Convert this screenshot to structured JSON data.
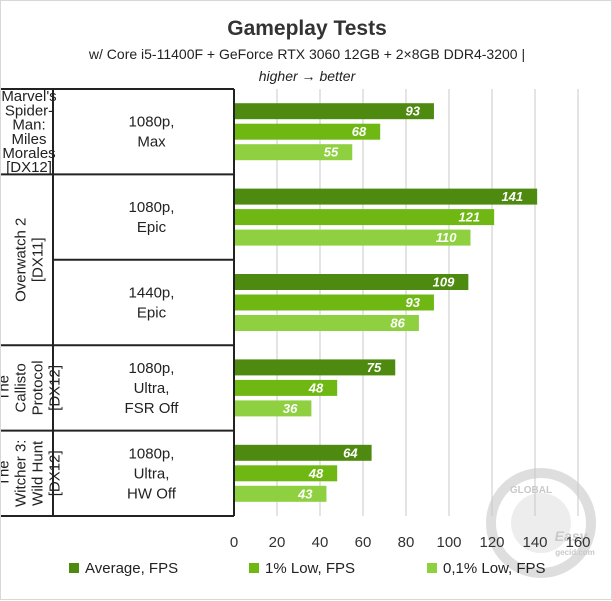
{
  "title": "Gameplay Tests",
  "subtitle_line1": "w/ Core i5-11400F + GeForce RTX 3060 12GB + 2×8GB DDR4-3200 |",
  "subtitle_line2": "higher → better",
  "watermark": {
    "top": "GLOBAL",
    "mid": "Easy",
    "bottom": "gecid.com"
  },
  "colors": {
    "average": "#4f8a10",
    "low1": "#6fb814",
    "low01": "#8fd040",
    "grid": "#c8c8c8",
    "divider": "#222222"
  },
  "chart_data": {
    "type": "bar",
    "orientation": "horizontal",
    "xlim": [
      0,
      160
    ],
    "x_ticks": [
      "0",
      "20",
      "40",
      "60",
      "80",
      "100",
      "120",
      "140",
      "160"
    ],
    "grid": true,
    "legend_position": "bottom",
    "series": [
      {
        "name": "Average, FPS"
      },
      {
        "name": "1% Low, FPS"
      },
      {
        "name": "0,1% Low, FPS"
      }
    ],
    "groups": [
      {
        "game": [
          "Marvel's",
          "Spider-",
          "Man:",
          "Miles",
          "Morales",
          "[DX12]"
        ],
        "game_layout": "horizontal",
        "settings": [
          {
            "label": [
              "1080p,",
              "Max"
            ],
            "values": [
              93,
              68,
              55
            ]
          }
        ]
      },
      {
        "game": [
          "Overwatch 2",
          "[DX11]"
        ],
        "game_layout": "vertical",
        "settings": [
          {
            "label": [
              "1080p,",
              "Epic"
            ],
            "values": [
              141,
              121,
              110
            ]
          },
          {
            "label": [
              "1440p,",
              "Epic"
            ],
            "values": [
              109,
              93,
              86
            ]
          }
        ]
      },
      {
        "game": [
          "The",
          "Callisto",
          "Protocol",
          "[DX12]"
        ],
        "game_layout": "vertical",
        "settings": [
          {
            "label": [
              "1080p,",
              "Ultra,",
              "FSR Off"
            ],
            "values": [
              75,
              48,
              36
            ]
          }
        ]
      },
      {
        "game": [
          "The",
          "Witcher 3:",
          "Wild Hunt",
          "[DX12]"
        ],
        "game_layout": "vertical",
        "settings": [
          {
            "label": [
              "1080p,",
              "Ultra,",
              "HW Off"
            ],
            "values": [
              64,
              48,
              43
            ]
          }
        ]
      }
    ]
  }
}
